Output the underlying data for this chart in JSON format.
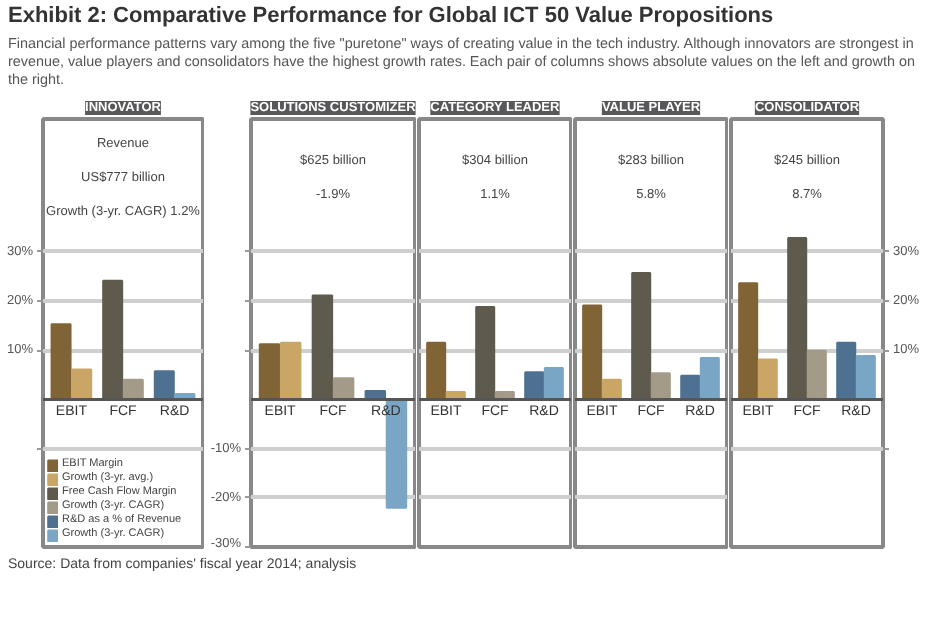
{
  "chart_data": [
    {
      "type": "other",
      "title": "Exhibit 2: Comparative Performance for Global ICT 50 Value Propositions",
      "subtitle": "Financial performance patterns vary among the five \"puretone\" ways of creating value in the tech industry. Although innovators are strongest in revenue, value players and consolidators have the highest growth rates. Each pair of columns shows absolute values on the left and growth on the right.",
      "annotations": [
        "Source: Data from companies' fiscal year 2014; analysis"
      ]
    },
    {
      "type": "bar",
      "title": "INNOVATOR",
      "categories": [
        "EBIT",
        "FCF",
        "R&D"
      ],
      "ylim": [
        -30,
        57
      ],
      "yticks": [
        {
          "value": -10,
          "label": null
        },
        {
          "value": 10,
          "label": "10%"
        },
        {
          "value": 20,
          "label": "20%"
        },
        {
          "value": 30,
          "label": "30%"
        }
      ],
      "grid": "y",
      "legend": "bottom left",
      "annotations": [
        "Revenue",
        "US$777 billion",
        "Growth (3-yr. CAGR) 1.2%"
      ],
      "series": [
        {
          "name": "EBIT Margin",
          "color": "#806436",
          "values": [
            15.3,
            null,
            null
          ]
        },
        {
          "name": "Growth (3-yr. avg.)",
          "color": "#c9a665",
          "values": [
            6.1,
            null,
            null
          ]
        },
        {
          "name": "Free Cash Flow Margin",
          "color": "#5f5a4e",
          "values": [
            null,
            24.1,
            null
          ]
        },
        {
          "name": "Growth (3-yr. CAGR)",
          "color": "#a39a87",
          "values": [
            null,
            4.0,
            null
          ]
        },
        {
          "name": "R&D as a % of Revenue",
          "color": "#4f7191",
          "values": [
            null,
            null,
            5.7
          ]
        },
        {
          "name": "Growth (3-yr. CAGR)",
          "color": "#7aa6c6",
          "values": [
            null,
            null,
            1.1
          ]
        }
      ]
    },
    {
      "type": "bar",
      "title": "SOLUTIONS CUSTOMIZER",
      "categories": [
        "EBIT",
        "FCF",
        "R&D"
      ],
      "ylim": [
        -30,
        57
      ],
      "yticks": [
        {
          "value": -30,
          "label": "-30%"
        },
        {
          "value": -20,
          "label": "-20%"
        },
        {
          "value": -10,
          "label": "-10%"
        },
        {
          "value": 10,
          "label": null
        },
        {
          "value": 20,
          "label": null
        },
        {
          "value": 30,
          "label": null
        }
      ],
      "grid": "y",
      "annotations": [
        "$625 billion",
        "-1.9%"
      ],
      "series": [
        {
          "color": "#806436",
          "values": [
            11.2,
            null,
            null
          ]
        },
        {
          "color": "#c9a665",
          "values": [
            11.5,
            null,
            null
          ]
        },
        {
          "color": "#5f5a4e",
          "values": [
            null,
            21.1,
            null
          ]
        },
        {
          "color": "#a39a87",
          "values": [
            null,
            4.3,
            null
          ]
        },
        {
          "color": "#4f7191",
          "values": [
            null,
            null,
            1.7
          ]
        },
        {
          "color": "#7aa6c6",
          "values": [
            null,
            null,
            -22.0
          ]
        }
      ]
    },
    {
      "type": "bar",
      "title": "CATEGORY LEADER",
      "categories": [
        "EBIT",
        "FCF",
        "R&D"
      ],
      "ylim": [
        -30,
        57
      ],
      "yticks": [
        {
          "value": -20,
          "label": null
        },
        {
          "value": -10,
          "label": null
        },
        {
          "value": 10,
          "label": null
        },
        {
          "value": 20,
          "label": null
        },
        {
          "value": 30,
          "label": null
        }
      ],
      "grid": "y",
      "tick_labels": "x",
      "annotations": [
        "$304 billion",
        "1.1%"
      ],
      "series": [
        {
          "color": "#806436",
          "values": [
            11.5,
            null,
            null
          ]
        },
        {
          "color": "#c9a665",
          "values": [
            1.5,
            null,
            null
          ]
        },
        {
          "color": "#5f5a4e",
          "values": [
            null,
            18.8,
            null
          ]
        },
        {
          "color": "#a39a87",
          "values": [
            null,
            1.5,
            null
          ]
        },
        {
          "color": "#4f7191",
          "values": [
            null,
            null,
            5.5
          ]
        },
        {
          "color": "#7aa6c6",
          "values": [
            null,
            null,
            6.4
          ]
        }
      ]
    },
    {
      "type": "bar",
      "title": "VALUE PLAYER",
      "categories": [
        "EBIT",
        "FCF",
        "R&D"
      ],
      "ylim": [
        -30,
        57
      ],
      "yticks": [
        {
          "value": -20,
          "label": null
        },
        {
          "value": -10,
          "label": null
        },
        {
          "value": 10,
          "label": null
        },
        {
          "value": 20,
          "label": null
        },
        {
          "value": 30,
          "label": null
        }
      ],
      "grid": "y",
      "tick_labels": "x",
      "annotations": [
        "$283 billion",
        "5.8%"
      ],
      "series": [
        {
          "color": "#806436",
          "values": [
            19.1,
            null,
            null
          ]
        },
        {
          "color": "#c9a665",
          "values": [
            4.0,
            null,
            null
          ]
        },
        {
          "color": "#5f5a4e",
          "values": [
            null,
            25.7,
            null
          ]
        },
        {
          "color": "#a39a87",
          "values": [
            null,
            5.3,
            null
          ]
        },
        {
          "color": "#4f7191",
          "values": [
            null,
            null,
            4.8
          ]
        },
        {
          "color": "#7aa6c6",
          "values": [
            null,
            null,
            8.4
          ]
        }
      ]
    },
    {
      "type": "bar",
      "title": "CONSOLIDATOR",
      "categories": [
        "EBIT",
        "FCF",
        "R&D"
      ],
      "ylim": [
        -30,
        57
      ],
      "yticks": [
        {
          "value": -10,
          "label": null
        },
        {
          "value": 10,
          "label": "10%"
        },
        {
          "value": 20,
          "label": "20%"
        },
        {
          "value": 30,
          "label": "30%"
        }
      ],
      "grid": "y",
      "annotations": [
        "$245 billion",
        "8.7%"
      ],
      "series": [
        {
          "color": "#806436",
          "values": [
            23.6,
            null,
            null
          ]
        },
        {
          "color": "#c9a665",
          "values": [
            8.1,
            null,
            null
          ]
        },
        {
          "color": "#5f5a4e",
          "values": [
            null,
            32.8,
            null
          ]
        },
        {
          "color": "#a39a87",
          "values": [
            null,
            9.9,
            null
          ]
        },
        {
          "color": "#4f7191",
          "values": [
            null,
            null,
            11.5
          ]
        },
        {
          "color": "#7aa6c6",
          "values": [
            null,
            null,
            8.8
          ]
        }
      ]
    }
  ]
}
